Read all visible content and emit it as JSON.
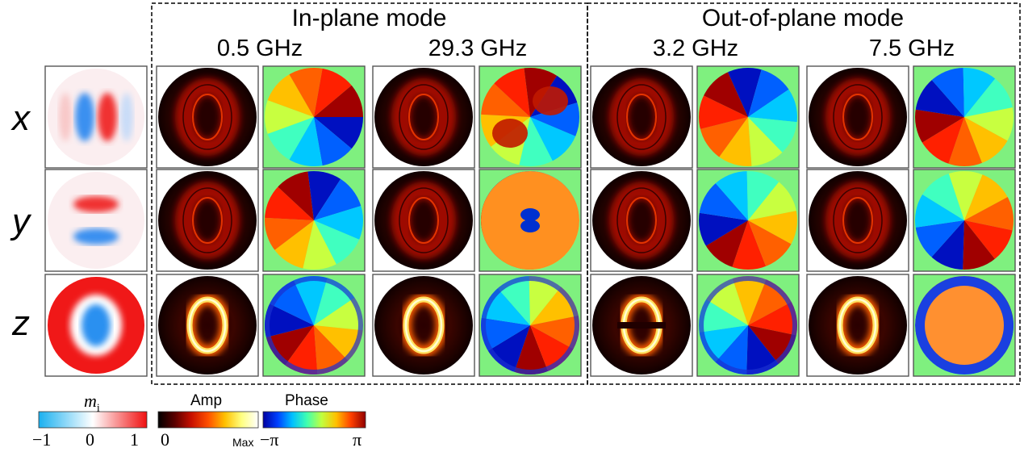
{
  "groups": [
    {
      "title": "In-plane mode",
      "frequencies": [
        "0.5 GHz",
        "29.3 GHz"
      ]
    },
    {
      "title": "Out-of-plane mode",
      "frequencies": [
        "3.2 GHz",
        "7.5 GHz"
      ]
    }
  ],
  "rows": [
    "x",
    "y",
    "z"
  ],
  "colorbars": {
    "magnetization": {
      "label_main": "m",
      "label_sub": "i",
      "ticks": [
        "−1",
        "0",
        "1"
      ],
      "colors": [
        "#1ab0f0",
        "#ffffff",
        "#f01010"
      ]
    },
    "amplitude": {
      "label": "Amp",
      "ticks": [
        "0",
        "Max"
      ],
      "colors": [
        "#000000",
        "#5a0000",
        "#c81000",
        "#ff5000",
        "#ffc000",
        "#ffff80",
        "#ffffff"
      ]
    },
    "phase": {
      "label": "Phase",
      "ticks": [
        "−π",
        "π"
      ],
      "colors": [
        "#0000a0",
        "#0040ff",
        "#00c0ff",
        "#40ffb0",
        "#c0ff40",
        "#ffc000",
        "#ff4000",
        "#900000"
      ]
    }
  },
  "colors": {
    "phase_background": "#7ff07f",
    "ring_glow": "#ffe060",
    "amp_dark": "#100000"
  }
}
